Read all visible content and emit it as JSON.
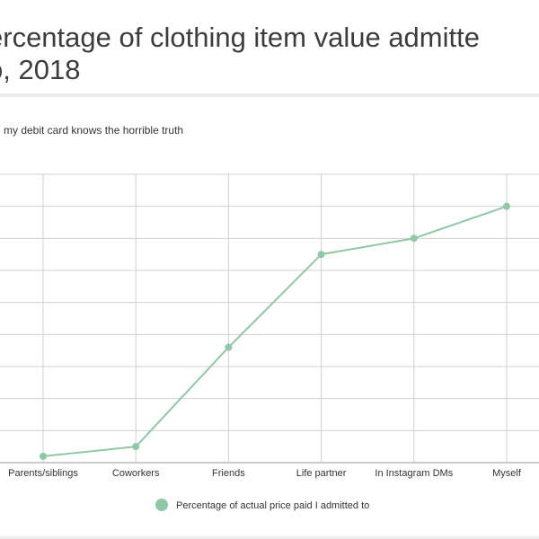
{
  "header": {
    "title_line1": "ercentage of clothing item value admitte",
    "title_line2": "o, 2018",
    "subtitle": "my debit card knows the horrible truth"
  },
  "colors": {
    "series": "#8fc8a5",
    "grid": "#d0d0d0",
    "axis": "#999999",
    "rule": "#ebebeb"
  },
  "chart_data": {
    "type": "line",
    "title": "ercentage of clothing item value admitte o, 2018",
    "subtitle": "my debit card knows the horrible truth",
    "categories": [
      "Parents/siblings",
      "Coworkers",
      "Friends",
      "Life partner",
      "In Instagram DMs",
      "Myself"
    ],
    "series": [
      {
        "name": "Percentage of actual price paid I admitted to",
        "values": [
          2,
          5,
          36,
          65,
          70,
          80
        ]
      }
    ],
    "ylim": [
      0,
      90
    ],
    "y_gridline_step": 10,
    "grid": true,
    "legend_position": "bottom",
    "xlabel": "",
    "ylabel": ""
  }
}
